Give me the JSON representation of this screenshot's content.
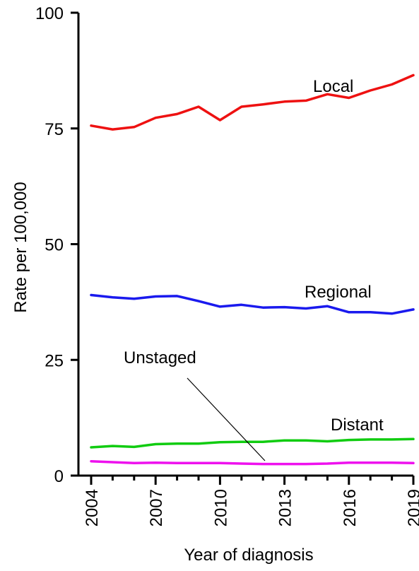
{
  "chart_data": {
    "type": "line",
    "title": "",
    "xlabel": "Year of diagnosis",
    "ylabel": "Rate per 100,000",
    "ylim": [
      0,
      100
    ],
    "xlim": [
      2004,
      2019
    ],
    "yticks": [
      0,
      25,
      50,
      75,
      100
    ],
    "xticks": [
      2004,
      2007,
      2010,
      2013,
      2016,
      2019
    ],
    "grid": false,
    "x": [
      2004,
      2005,
      2006,
      2007,
      2008,
      2009,
      2010,
      2011,
      2012,
      2013,
      2014,
      2015,
      2016,
      2017,
      2018,
      2019
    ],
    "series": [
      {
        "name": "Local",
        "color": "#ee1111",
        "values": [
          75.6,
          74.8,
          75.3,
          77.3,
          78.1,
          79.7,
          76.8,
          79.7,
          80.2,
          80.8,
          81.0,
          82.4,
          81.6,
          83.2,
          84.5,
          86.5
        ]
      },
      {
        "name": "Regional",
        "color": "#1a1aee",
        "values": [
          39.0,
          38.5,
          38.2,
          38.7,
          38.8,
          37.7,
          36.5,
          36.9,
          36.3,
          36.4,
          36.1,
          36.6,
          35.3,
          35.3,
          35.0,
          35.9
        ]
      },
      {
        "name": "Distant",
        "color": "#11cc11",
        "values": [
          6.1,
          6.4,
          6.2,
          6.8,
          6.9,
          6.9,
          7.2,
          7.3,
          7.3,
          7.6,
          7.6,
          7.4,
          7.7,
          7.8,
          7.8,
          7.9
        ]
      },
      {
        "name": "Unstaged",
        "color": "#ee11ee",
        "values": [
          3.1,
          2.9,
          2.7,
          2.8,
          2.7,
          2.7,
          2.7,
          2.6,
          2.5,
          2.5,
          2.5,
          2.6,
          2.8,
          2.8,
          2.8,
          2.7
        ]
      }
    ]
  }
}
